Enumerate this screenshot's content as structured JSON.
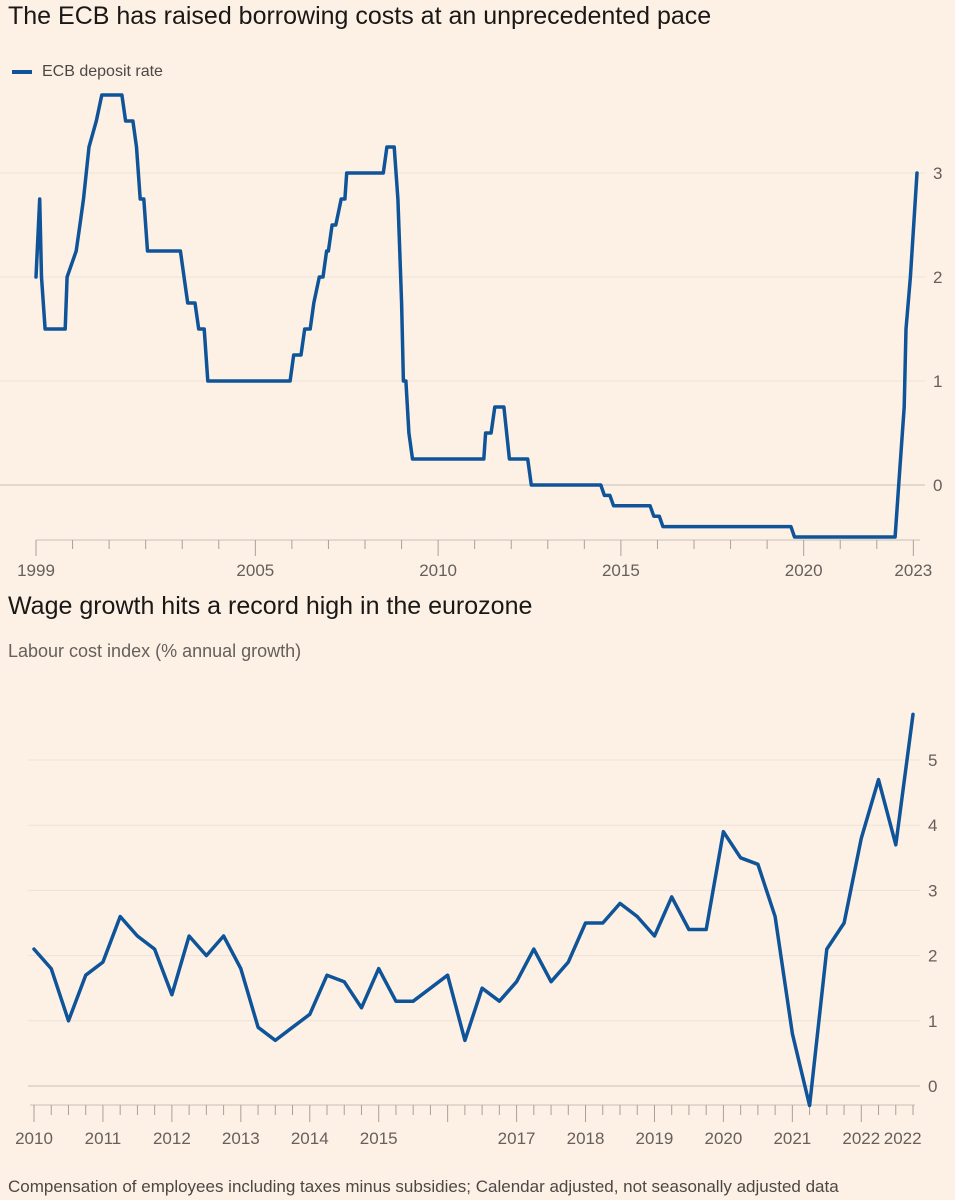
{
  "chart_data": [
    {
      "type": "line",
      "title": "The ECB has raised borrowing costs at an unprecedented pace",
      "legend": [
        "ECB deposit rate"
      ],
      "series": [
        {
          "name": "ECB deposit rate",
          "color": "#0f5499",
          "points": [
            [
              1999.0,
              2.0
            ],
            [
              1999.1,
              2.75
            ],
            [
              1999.15,
              2.0
            ],
            [
              1999.25,
              1.5
            ],
            [
              1999.8,
              1.5
            ],
            [
              1999.85,
              2.0
            ],
            [
              2000.1,
              2.25
            ],
            [
              2000.2,
              2.5
            ],
            [
              2000.3,
              2.75
            ],
            [
              2000.45,
              3.25
            ],
            [
              2000.65,
              3.5
            ],
            [
              2000.8,
              3.75
            ],
            [
              2001.35,
              3.75
            ],
            [
              2001.45,
              3.5
            ],
            [
              2001.65,
              3.5
            ],
            [
              2001.75,
              3.25
            ],
            [
              2001.85,
              2.75
            ],
            [
              2001.95,
              2.75
            ],
            [
              2002.05,
              2.25
            ],
            [
              2002.95,
              2.25
            ],
            [
              2003.15,
              1.75
            ],
            [
              2003.35,
              1.75
            ],
            [
              2003.45,
              1.5
            ],
            [
              2003.6,
              1.5
            ],
            [
              2003.7,
              1.0
            ],
            [
              2005.95,
              1.0
            ],
            [
              2006.05,
              1.25
            ],
            [
              2006.25,
              1.25
            ],
            [
              2006.35,
              1.5
            ],
            [
              2006.5,
              1.5
            ],
            [
              2006.6,
              1.75
            ],
            [
              2006.75,
              2.0
            ],
            [
              2006.85,
              2.0
            ],
            [
              2006.95,
              2.25
            ],
            [
              2007.0,
              2.25
            ],
            [
              2007.1,
              2.5
            ],
            [
              2007.2,
              2.5
            ],
            [
              2007.35,
              2.75
            ],
            [
              2007.45,
              2.75
            ],
            [
              2007.5,
              3.0
            ],
            [
              2008.5,
              3.0
            ],
            [
              2008.6,
              3.25
            ],
            [
              2008.8,
              3.25
            ],
            [
              2008.9,
              2.75
            ],
            [
              2009.0,
              1.75
            ],
            [
              2009.05,
              1.0
            ],
            [
              2009.12,
              1.0
            ],
            [
              2009.2,
              0.5
            ],
            [
              2009.3,
              0.25
            ],
            [
              2011.25,
              0.25
            ],
            [
              2011.3,
              0.5
            ],
            [
              2011.45,
              0.5
            ],
            [
              2011.55,
              0.75
            ],
            [
              2011.8,
              0.75
            ],
            [
              2011.95,
              0.25
            ],
            [
              2012.45,
              0.25
            ],
            [
              2012.55,
              0.0
            ],
            [
              2014.45,
              0.0
            ],
            [
              2014.55,
              -0.1
            ],
            [
              2014.7,
              -0.1
            ],
            [
              2014.8,
              -0.2
            ],
            [
              2015.8,
              -0.2
            ],
            [
              2015.9,
              -0.3
            ],
            [
              2016.05,
              -0.3
            ],
            [
              2016.15,
              -0.4
            ],
            [
              2019.65,
              -0.4
            ],
            [
              2019.75,
              -0.5
            ],
            [
              2022.5,
              -0.5
            ],
            [
              2022.6,
              0.0
            ],
            [
              2022.75,
              0.75
            ],
            [
              2022.8,
              1.5
            ],
            [
              2022.92,
              2.0
            ],
            [
              2023.1,
              3.0
            ]
          ]
        }
      ],
      "x_ticks": [
        1999,
        2005,
        2010,
        2015,
        2020,
        2023
      ],
      "xlim": [
        1999,
        2023.1
      ],
      "y_ticks": [
        3,
        2,
        1,
        0
      ],
      "ylim": [
        -0.5,
        3.75
      ],
      "grid": true
    },
    {
      "type": "line",
      "title": "Wage growth hits a record high in the eurozone",
      "subtitle": "Labour cost index (% annual growth)",
      "footnote": "Compensation of employees including taxes minus subsidies; Calendar adjusted, not seasonally adjusted data",
      "series": [
        {
          "name": "Labour cost index",
          "color": "#0f5499",
          "values": [
            2.1,
            1.8,
            1.0,
            1.7,
            1.9,
            2.6,
            2.3,
            2.1,
            1.4,
            2.3,
            2.0,
            2.3,
            1.8,
            0.9,
            0.7,
            0.9,
            1.1,
            1.7,
            1.6,
            1.2,
            1.8,
            1.3,
            1.3,
            1.5,
            1.7,
            0.7,
            1.5,
            1.3,
            1.6,
            2.1,
            1.6,
            1.9,
            2.5,
            2.5,
            2.8,
            2.6,
            2.3,
            2.9,
            2.4,
            2.4,
            3.9,
            3.5,
            3.4,
            2.6,
            0.8,
            -0.3,
            2.1,
            2.5,
            3.8,
            4.7,
            3.7,
            5.7
          ]
        }
      ],
      "x_start_year": 2010,
      "periods_per_year": 4,
      "x_ticks": [
        "2010",
        "2011",
        "2012",
        "2013",
        "2014",
        "2015",
        "2017",
        "2018",
        "2019",
        "2020",
        "2021",
        "2022",
        "2022"
      ],
      "x_tick_positions": [
        2010,
        2011,
        2012,
        2013,
        2014,
        2015,
        2017,
        2018,
        2019,
        2020,
        2021,
        2022,
        2022.6
      ],
      "y_ticks": [
        5,
        4,
        3,
        2,
        1,
        0
      ],
      "ylim": [
        -0.3,
        5.7
      ],
      "grid": true
    }
  ]
}
